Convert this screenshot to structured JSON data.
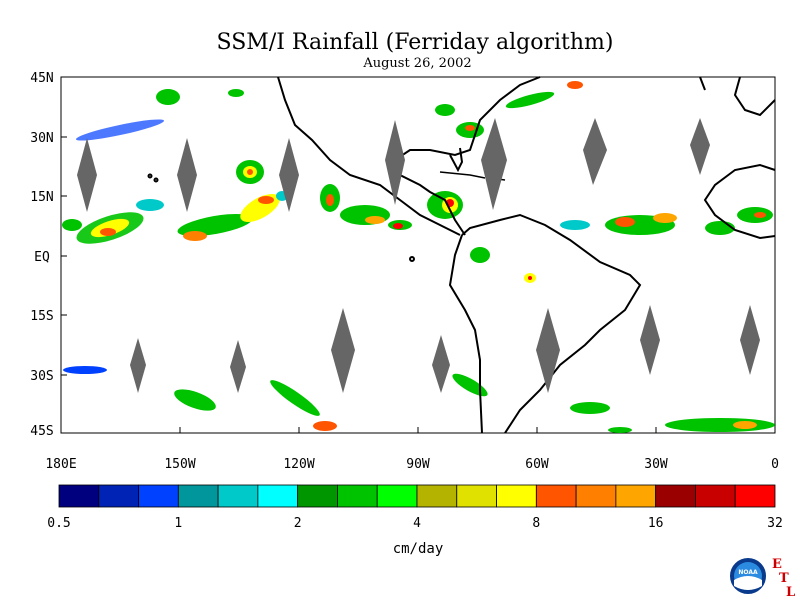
{
  "title": "SSM/I Rainfall (Ferriday algorithm)",
  "subtitle": "August 26, 2002",
  "map": {
    "lat_labels": [
      "45N",
      "30N",
      "15N",
      "EQ",
      "15S",
      "30S",
      "45S"
    ],
    "lon_labels": [
      "180E",
      "150W",
      "120W",
      "90W",
      "60W",
      "30W",
      "0"
    ],
    "land_color": "#ffffff",
    "coast_color": "#000000",
    "swath_gap_color": "#666666"
  },
  "colorbar": {
    "colors": [
      "#00007f",
      "#0023b5",
      "#0040ff",
      "#00969c",
      "#00c9c9",
      "#00ffff",
      "#009600",
      "#00c300",
      "#00ff00",
      "#b4b400",
      "#e1e100",
      "#ffff00",
      "#ff5400",
      "#ff7f00",
      "#ffa500",
      "#9a0000",
      "#c80000",
      "#ff0000"
    ],
    "tick_labels": [
      "0.5",
      "1",
      "2",
      "4",
      "8",
      "16",
      "32"
    ],
    "unit": "cm/day"
  },
  "logo": {
    "agency_text": "NOAA",
    "lab_letters": [
      "E",
      "T",
      "L"
    ]
  }
}
